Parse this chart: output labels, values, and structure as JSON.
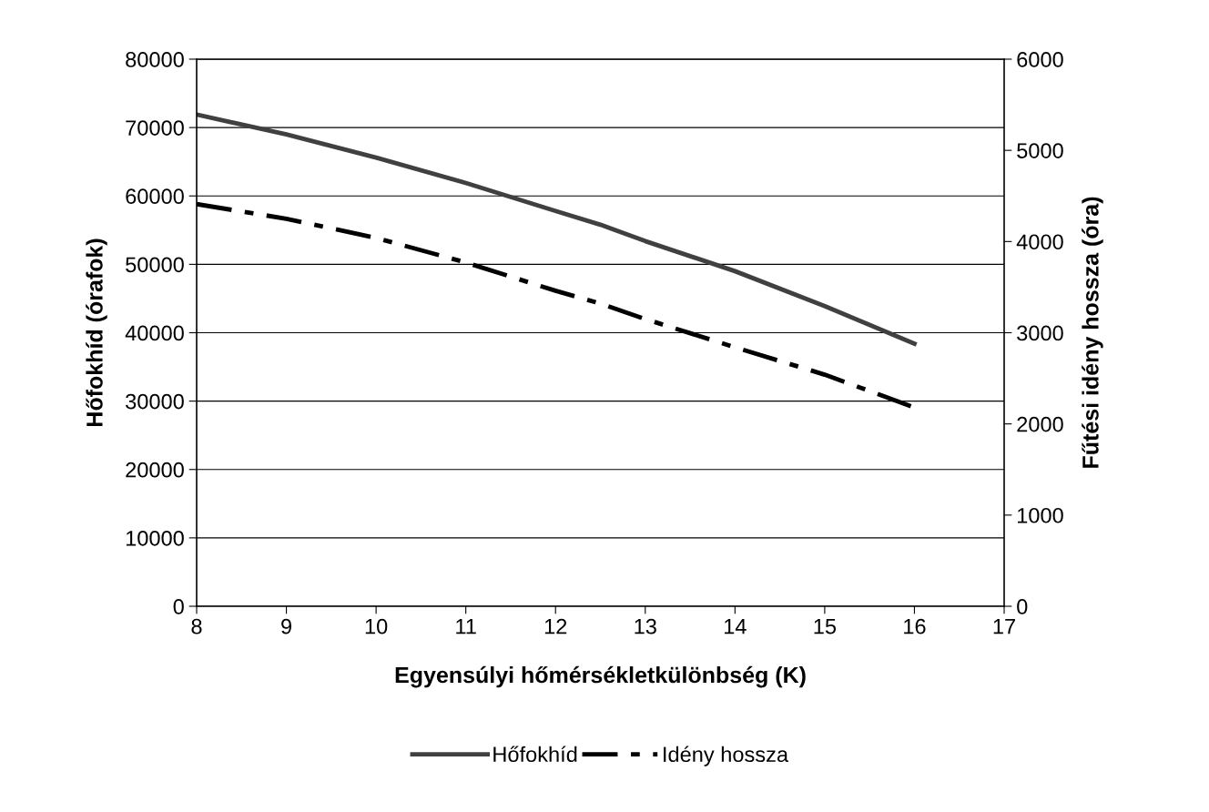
{
  "chart_data": {
    "type": "line",
    "xlabel": "Egyensúlyi hőmérsékletkülönbség (K)",
    "ylabel": "Hőfokhíd (órafok)",
    "y2label": "Fűtési idény hossza (óra)",
    "x": [
      8,
      9,
      10,
      11,
      12,
      12.5,
      13,
      14,
      15,
      16
    ],
    "series": [
      {
        "name": "Hőfokhíd",
        "color": "#404040",
        "line_style": "solid",
        "values": [
          71900,
          69000,
          65600,
          61900,
          57800,
          55800,
          53400,
          49000,
          43900,
          38400
        ]
      },
      {
        "name": "Idény hossza",
        "color": "#000000",
        "line_style": "dashed",
        "axis": "y2",
        "values": [
          4410,
          4250,
          4040,
          3770,
          3460,
          3320,
          3150,
          2840,
          2540,
          2180
        ]
      }
    ],
    "xlim": [
      8,
      17
    ],
    "xticks": [
      8,
      9,
      10,
      11,
      12,
      13,
      14,
      15,
      16,
      17
    ],
    "ylim": [
      0,
      80000
    ],
    "yticks": [
      0,
      10000,
      20000,
      30000,
      40000,
      50000,
      60000,
      70000,
      80000
    ],
    "y2lim": [
      0,
      6000
    ],
    "y2ticks": [
      0,
      1000,
      2000,
      3000,
      4000,
      5000,
      6000
    ],
    "grid": "y",
    "legend": "bottom",
    "marker": "none"
  }
}
